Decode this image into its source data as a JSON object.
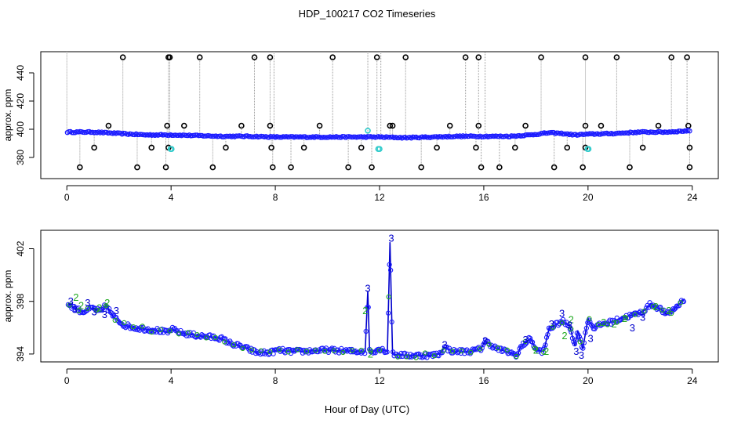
{
  "title": "HDP_100217  CO2 Timeseries",
  "xlabel": "Hour of Day (UTC)",
  "colors": {
    "background": "#ffffff",
    "raw_marker": "#000000",
    "fit_line": "#0000cc",
    "fit_point": "#1a1aff",
    "flag_marker": "#33cccc",
    "drop_line": "#999999",
    "cluster2": "#22aa22",
    "cluster3": "#0000cc"
  },
  "chart_data": [
    {
      "id": "top",
      "type": "scatter",
      "ylabel": "approx. ppm",
      "xlim": [
        -1,
        25
      ],
      "ylim": [
        365,
        455
      ],
      "xticks": [
        0,
        4,
        8,
        12,
        16,
        20,
        24
      ],
      "yticks": [
        380,
        400,
        420,
        440
      ],
      "baseline_knots": [
        [
          0,
          398
        ],
        [
          1,
          398
        ],
        [
          2,
          397
        ],
        [
          3,
          396
        ],
        [
          4,
          396
        ],
        [
          5,
          395.5
        ],
        [
          6,
          395
        ],
        [
          7,
          395
        ],
        [
          8,
          394.5
        ],
        [
          9,
          394.5
        ],
        [
          10,
          394.5
        ],
        [
          11,
          394.5
        ],
        [
          12,
          394.5
        ],
        [
          13,
          394
        ],
        [
          14,
          394.5
        ],
        [
          15,
          395
        ],
        [
          16,
          395
        ],
        [
          17,
          395
        ],
        [
          17.8,
          396
        ],
        [
          18.5,
          397.5
        ],
        [
          19,
          397
        ],
        [
          19.5,
          396
        ],
        [
          20,
          396.5
        ],
        [
          21,
          397
        ],
        [
          22,
          398
        ],
        [
          23,
          398
        ],
        [
          23.9,
          399
        ]
      ],
      "spikes_high": [
        2.15,
        3.9,
        3.95,
        5.1,
        7.2,
        7.8,
        10.2,
        11.9,
        13.0,
        15.3,
        15.8,
        18.2,
        19.9,
        21.1,
        23.2,
        23.8
      ],
      "spikes_low": [
        0.5,
        2.7,
        3.8,
        5.6,
        7.9,
        8.6,
        10.8,
        11.7,
        13.6,
        15.9,
        16.6,
        18.7,
        19.8,
        21.6,
        23.9
      ],
      "spikes_mid_low": [
        1.05,
        3.25,
        3.9,
        6.1,
        7.85,
        9.1,
        11.3,
        14.2,
        15.7,
        17.2,
        19.2,
        19.9,
        22.1,
        23.9
      ],
      "spikes_mid_high": [
        1.6,
        3.85,
        4.5,
        6.7,
        7.8,
        9.7,
        12.4,
        12.5,
        14.7,
        15.8,
        17.6,
        19.9,
        20.5,
        22.7,
        23.85
      ],
      "spike_high_value": 451,
      "spike_low_value": 373,
      "spike_mid_low_value": 387,
      "spike_mid_high_value": 402.5,
      "tall_lines": [
        0.0,
        7.95,
        11.55,
        12.05,
        16.05
      ],
      "tall_line_value": 455,
      "flags": [
        [
          3.98,
          386
        ],
        [
          4.02,
          386
        ],
        [
          11.55,
          399
        ],
        [
          11.95,
          386
        ],
        [
          12.0,
          386
        ],
        [
          19.98,
          386
        ],
        [
          20.02,
          386
        ]
      ]
    },
    {
      "id": "bottom",
      "type": "line",
      "ylabel": "approx. ppm",
      "xlim": [
        -1,
        25
      ],
      "ylim": [
        393.4,
        403.4
      ],
      "xticks": [
        0,
        4,
        8,
        12,
        16,
        20,
        24
      ],
      "yticks": [
        394,
        398,
        402
      ],
      "series_knots": [
        [
          0.05,
          397.8
        ],
        [
          0.3,
          397.5
        ],
        [
          0.6,
          397.2
        ],
        [
          1.0,
          397.5
        ],
        [
          1.3,
          397.2
        ],
        [
          1.5,
          397.7
        ],
        [
          1.8,
          396.8
        ],
        [
          2.2,
          396.2
        ],
        [
          2.6,
          396.0
        ],
        [
          3.0,
          395.9
        ],
        [
          3.5,
          395.8
        ],
        [
          3.9,
          395.6
        ],
        [
          4.0,
          395.9
        ],
        [
          4.4,
          395.6
        ],
        [
          5.0,
          395.4
        ],
        [
          5.5,
          395.3
        ],
        [
          5.9,
          395.2
        ],
        [
          6.3,
          394.8
        ],
        [
          6.8,
          394.5
        ],
        [
          7.3,
          394.1
        ],
        [
          7.8,
          394.1
        ],
        [
          8.1,
          394.3
        ],
        [
          8.5,
          394.2
        ],
        [
          9.0,
          394.2
        ],
        [
          10.0,
          394.3
        ],
        [
          11.0,
          394.2
        ],
        [
          11.45,
          394.2
        ],
        [
          11.55,
          398.8
        ],
        [
          11.62,
          394.1
        ],
        [
          12.0,
          394.4
        ],
        [
          12.3,
          394.2
        ],
        [
          12.4,
          402.5
        ],
        [
          12.5,
          394.0
        ],
        [
          13.0,
          393.9
        ],
        [
          13.5,
          393.9
        ],
        [
          14.0,
          393.9
        ],
        [
          14.3,
          394.0
        ],
        [
          14.5,
          394.5
        ],
        [
          14.8,
          394.2
        ],
        [
          15.5,
          394.2
        ],
        [
          15.9,
          394.4
        ],
        [
          16.05,
          395.0
        ],
        [
          16.5,
          394.4
        ],
        [
          17.0,
          394.1
        ],
        [
          17.3,
          393.9
        ],
        [
          17.4,
          394.5
        ],
        [
          17.8,
          395.2
        ],
        [
          18.0,
          394.3
        ],
        [
          18.3,
          394.2
        ],
        [
          18.5,
          395.9
        ],
        [
          19.0,
          396.5
        ],
        [
          19.3,
          396.1
        ],
        [
          19.5,
          394.6
        ],
        [
          19.6,
          395.8
        ],
        [
          19.8,
          394.4
        ],
        [
          20.0,
          396.7
        ],
        [
          20.2,
          396.0
        ],
        [
          20.6,
          396.3
        ],
        [
          21.0,
          396.5
        ],
        [
          21.4,
          396.8
        ],
        [
          21.8,
          397.0
        ],
        [
          22.1,
          397.2
        ],
        [
          22.4,
          397.8
        ],
        [
          22.8,
          397.4
        ],
        [
          23.0,
          397.0
        ],
        [
          23.3,
          397.4
        ],
        [
          23.7,
          398.2
        ]
      ],
      "cluster3_labels": [
        [
          0.15,
          398.0
        ],
        [
          0.3,
          397.4
        ],
        [
          0.8,
          397.9
        ],
        [
          1.05,
          397.2
        ],
        [
          1.45,
          397.0
        ],
        [
          1.9,
          397.3
        ],
        [
          11.55,
          399.0
        ],
        [
          12.45,
          402.8
        ],
        [
          14.5,
          394.7
        ],
        [
          16.05,
          395.0
        ],
        [
          17.6,
          395.1
        ],
        [
          18.6,
          396.3
        ],
        [
          19.0,
          397.1
        ],
        [
          19.3,
          396.2
        ],
        [
          19.55,
          394.2
        ],
        [
          19.75,
          393.9
        ],
        [
          20.1,
          395.2
        ],
        [
          21.7,
          396.0
        ],
        [
          22.1,
          396.8
        ]
      ],
      "cluster2_labels": [
        [
          0.35,
          398.3
        ],
        [
          0.55,
          397.7
        ],
        [
          1.25,
          397.5
        ],
        [
          1.55,
          397.9
        ],
        [
          11.45,
          397.3
        ],
        [
          11.65,
          394.0
        ],
        [
          18.0,
          394.3
        ],
        [
          18.4,
          394.2
        ],
        [
          19.1,
          395.4
        ],
        [
          19.35,
          396.6
        ],
        [
          20.6,
          396.4
        ],
        [
          21.0,
          396.3
        ],
        [
          21.4,
          396.7
        ],
        [
          22.6,
          397.6
        ],
        [
          23.1,
          397.3
        ]
      ]
    }
  ]
}
